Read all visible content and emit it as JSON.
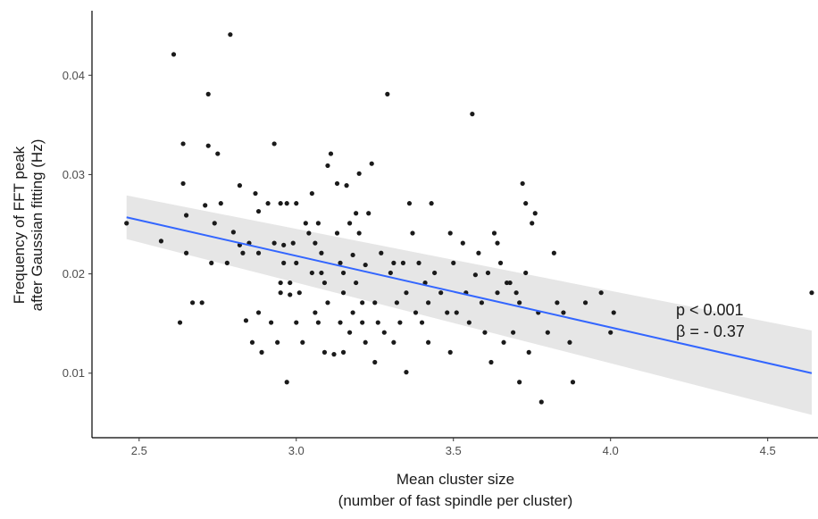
{
  "chart_data": {
    "type": "scatter",
    "xlabel_line1": "Mean cluster size",
    "xlabel_line2": "(number of fast spindle per cluster)",
    "ylabel_line1": "Frequency of FFT peak",
    "ylabel_line2": "after Gaussian fitting (Hz)",
    "xlim": [
      2.35,
      4.66
    ],
    "ylim": [
      0.0035,
      0.0465
    ],
    "x_ticks": [
      2.5,
      3.0,
      3.5,
      4.0,
      4.5
    ],
    "x_tick_labels": [
      "2.5",
      "3.0",
      "3.5",
      "4.0",
      "4.5"
    ],
    "y_ticks": [
      0.01,
      0.02,
      0.03,
      0.04
    ],
    "y_tick_labels": [
      "0.01",
      "0.02",
      "0.03",
      "0.04"
    ],
    "grid": false,
    "annotation_line1": "p < 0.001",
    "annotation_line2": "β = - 0.37",
    "colors": {
      "points": "#1a1a1a",
      "fit_line": "#3366ff",
      "confidence_band": "#e6e6e6",
      "axis": "#000000"
    },
    "fit": {
      "x": [
        2.46,
        4.64
      ],
      "y": [
        0.0257,
        0.01
      ],
      "ci_lower": [
        0.0235,
        0.0058
      ],
      "ci_upper": [
        0.0279,
        0.0143
      ]
    },
    "points": [
      [
        2.46,
        0.0251
      ],
      [
        2.57,
        0.0233
      ],
      [
        2.61,
        0.0421
      ],
      [
        2.63,
        0.0151
      ],
      [
        2.64,
        0.0331
      ],
      [
        2.64,
        0.0291
      ],
      [
        2.65,
        0.0259
      ],
      [
        2.65,
        0.0221
      ],
      [
        2.67,
        0.0171
      ],
      [
        2.7,
        0.0171
      ],
      [
        2.71,
        0.0269
      ],
      [
        2.72,
        0.0329
      ],
      [
        2.72,
        0.0381
      ],
      [
        2.73,
        0.0211
      ],
      [
        2.74,
        0.0251
      ],
      [
        2.75,
        0.0321
      ],
      [
        2.76,
        0.0271
      ],
      [
        2.78,
        0.0211
      ],
      [
        2.79,
        0.0441
      ],
      [
        2.8,
        0.0242
      ],
      [
        2.82,
        0.0289
      ],
      [
        2.82,
        0.0229
      ],
      [
        2.83,
        0.0221
      ],
      [
        2.84,
        0.0153
      ],
      [
        2.85,
        0.0231
      ],
      [
        2.86,
        0.0131
      ],
      [
        2.87,
        0.0281
      ],
      [
        2.88,
        0.0263
      ],
      [
        2.88,
        0.0221
      ],
      [
        2.88,
        0.0161
      ],
      [
        2.89,
        0.0121
      ],
      [
        2.91,
        0.0271
      ],
      [
        2.92,
        0.0151
      ],
      [
        2.93,
        0.0331
      ],
      [
        2.93,
        0.0231
      ],
      [
        2.94,
        0.0131
      ],
      [
        2.95,
        0.0271
      ],
      [
        2.95,
        0.0191
      ],
      [
        2.95,
        0.0181
      ],
      [
        2.96,
        0.0229
      ],
      [
        2.96,
        0.0211
      ],
      [
        2.97,
        0.0091
      ],
      [
        2.97,
        0.0271
      ],
      [
        2.98,
        0.0191
      ],
      [
        2.98,
        0.0179
      ],
      [
        2.99,
        0.0231
      ],
      [
        3.0,
        0.0211
      ],
      [
        3.0,
        0.0151
      ],
      [
        3.0,
        0.0271
      ],
      [
        3.01,
        0.0181
      ],
      [
        3.02,
        0.0131
      ],
      [
        3.03,
        0.0251
      ],
      [
        3.04,
        0.0241
      ],
      [
        3.05,
        0.0281
      ],
      [
        3.05,
        0.0201
      ],
      [
        3.06,
        0.0161
      ],
      [
        3.06,
        0.0231
      ],
      [
        3.07,
        0.0151
      ],
      [
        3.07,
        0.0251
      ],
      [
        3.08,
        0.0221
      ],
      [
        3.08,
        0.0201
      ],
      [
        3.09,
        0.0121
      ],
      [
        3.09,
        0.0191
      ],
      [
        3.1,
        0.0309
      ],
      [
        3.1,
        0.0171
      ],
      [
        3.11,
        0.0321
      ],
      [
        3.12,
        0.0119
      ],
      [
        3.13,
        0.0291
      ],
      [
        3.13,
        0.0241
      ],
      [
        3.14,
        0.0211
      ],
      [
        3.14,
        0.0151
      ],
      [
        3.15,
        0.0201
      ],
      [
        3.15,
        0.0181
      ],
      [
        3.15,
        0.0121
      ],
      [
        3.16,
        0.0289
      ],
      [
        3.17,
        0.0251
      ],
      [
        3.17,
        0.0141
      ],
      [
        3.18,
        0.0219
      ],
      [
        3.18,
        0.0161
      ],
      [
        3.19,
        0.0261
      ],
      [
        3.19,
        0.0191
      ],
      [
        3.2,
        0.0301
      ],
      [
        3.2,
        0.0241
      ],
      [
        3.21,
        0.0171
      ],
      [
        3.21,
        0.0151
      ],
      [
        3.22,
        0.0209
      ],
      [
        3.22,
        0.0131
      ],
      [
        3.23,
        0.0261
      ],
      [
        3.24,
        0.0311
      ],
      [
        3.25,
        0.0171
      ],
      [
        3.25,
        0.0111
      ],
      [
        3.26,
        0.0151
      ],
      [
        3.27,
        0.0221
      ],
      [
        3.28,
        0.0141
      ],
      [
        3.29,
        0.0381
      ],
      [
        3.3,
        0.0201
      ],
      [
        3.31,
        0.0211
      ],
      [
        3.31,
        0.0131
      ],
      [
        3.32,
        0.0171
      ],
      [
        3.33,
        0.0151
      ],
      [
        3.34,
        0.0211
      ],
      [
        3.35,
        0.0181
      ],
      [
        3.35,
        0.0101
      ],
      [
        3.36,
        0.0271
      ],
      [
        3.37,
        0.0241
      ],
      [
        3.38,
        0.0161
      ],
      [
        3.39,
        0.0211
      ],
      [
        3.4,
        0.0151
      ],
      [
        3.41,
        0.0191
      ],
      [
        3.42,
        0.0171
      ],
      [
        3.42,
        0.0131
      ],
      [
        3.43,
        0.0271
      ],
      [
        3.44,
        0.0201
      ],
      [
        3.46,
        0.0181
      ],
      [
        3.48,
        0.0161
      ],
      [
        3.49,
        0.0241
      ],
      [
        3.49,
        0.0121
      ],
      [
        3.5,
        0.0211
      ],
      [
        3.51,
        0.0161
      ],
      [
        3.53,
        0.0231
      ],
      [
        3.54,
        0.0181
      ],
      [
        3.55,
        0.0151
      ],
      [
        3.56,
        0.0361
      ],
      [
        3.57,
        0.0199
      ],
      [
        3.58,
        0.0221
      ],
      [
        3.59,
        0.0171
      ],
      [
        3.6,
        0.0141
      ],
      [
        3.61,
        0.0201
      ],
      [
        3.62,
        0.0111
      ],
      [
        3.63,
        0.0241
      ],
      [
        3.64,
        0.0231
      ],
      [
        3.64,
        0.0181
      ],
      [
        3.65,
        0.0211
      ],
      [
        3.66,
        0.0131
      ],
      [
        3.67,
        0.0191
      ],
      [
        3.68,
        0.0191
      ],
      [
        3.69,
        0.0141
      ],
      [
        3.7,
        0.0181
      ],
      [
        3.71,
        0.0171
      ],
      [
        3.71,
        0.0091
      ],
      [
        3.72,
        0.0291
      ],
      [
        3.73,
        0.0201
      ],
      [
        3.73,
        0.0271
      ],
      [
        3.74,
        0.0121
      ],
      [
        3.75,
        0.0251
      ],
      [
        3.76,
        0.0261
      ],
      [
        3.77,
        0.0161
      ],
      [
        3.78,
        0.0071
      ],
      [
        3.8,
        0.0141
      ],
      [
        3.82,
        0.0221
      ],
      [
        3.83,
        0.0171
      ],
      [
        3.85,
        0.0161
      ],
      [
        3.87,
        0.0131
      ],
      [
        3.88,
        0.0091
      ],
      [
        3.92,
        0.0171
      ],
      [
        3.97,
        0.0181
      ],
      [
        4.0,
        0.0141
      ],
      [
        4.01,
        0.0161
      ],
      [
        4.64,
        0.0181
      ]
    ]
  }
}
